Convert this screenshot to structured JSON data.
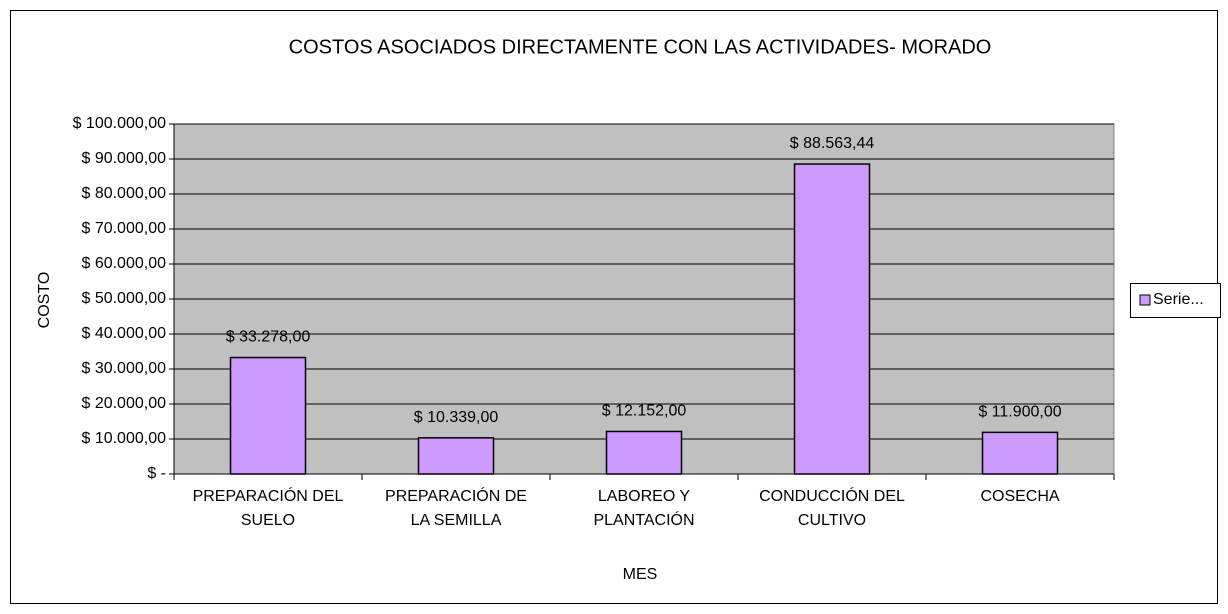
{
  "chart_data": {
    "type": "bar",
    "title": "COSTOS ASOCIADOS DIRECTAMENTE  CON LAS ACTIVIDADES- MORADO",
    "x_label": "MES",
    "y_label": "COSTO",
    "categories": [
      "PREPARACIÓN DEL\nSUELO",
      "PREPARACIÓN DE\nLA SEMILLA",
      "LABOREO Y\nPLANTACIÓN",
      "CONDUCCIÓN DEL\nCULTIVO",
      "COSECHA"
    ],
    "series": [
      {
        "name": "Serie...",
        "color": "#cc99ff",
        "values": [
          33278,
          10339,
          12152,
          88563.44,
          11900
        ],
        "value_labels": [
          "$ 33.278,00",
          "$ 10.339,00",
          "$ 12.152,00",
          "$ 88.563,44",
          "$ 11.900,00"
        ]
      }
    ],
    "ylim": [
      0,
      100000
    ],
    "yticks": [
      {
        "value": 0,
        "label": "$ -"
      },
      {
        "value": 10000,
        "label": "$ 10.000,00"
      },
      {
        "value": 20000,
        "label": "$ 20.000,00"
      },
      {
        "value": 30000,
        "label": "$ 30.000,00"
      },
      {
        "value": 40000,
        "label": "$ 40.000,00"
      },
      {
        "value": 50000,
        "label": "$ 50.000,00"
      },
      {
        "value": 60000,
        "label": "$ 60.000,00"
      },
      {
        "value": 70000,
        "label": "$ 70.000,00"
      },
      {
        "value": 80000,
        "label": "$ 80.000,00"
      },
      {
        "value": 90000,
        "label": "$ 90.000,00"
      },
      {
        "value": 100000,
        "label": "$ 100.000,00"
      }
    ],
    "grid": true,
    "legend": "right"
  }
}
